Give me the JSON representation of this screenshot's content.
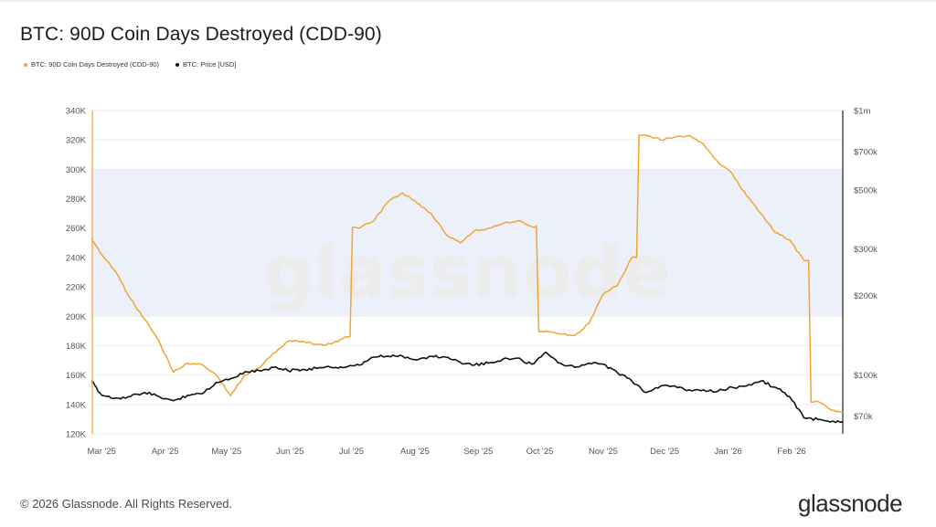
{
  "title": "BTC: 90D Coin Days Destroyed (CDD-90)",
  "legend": [
    {
      "label": "BTC: 90D Coin Days Destroyed (CDD-90)",
      "color": "#f2a431"
    },
    {
      "label": "BTC: Price [USD]",
      "color": "#111111"
    }
  ],
  "watermark": "glassnode",
  "footer": {
    "copyright": "© 2026 Glassnode. All Rights Reserved.",
    "logo": "glassnode"
  },
  "chart_data": {
    "type": "line",
    "x": [
      "2025-02-24",
      "2025-03-01",
      "2025-03-08",
      "2025-03-15",
      "2025-03-22",
      "2025-03-29",
      "2025-04-05",
      "2025-04-12",
      "2025-04-19",
      "2025-04-26",
      "2025-05-03",
      "2025-05-10",
      "2025-05-17",
      "2025-05-24",
      "2025-05-31",
      "2025-06-07",
      "2025-06-14",
      "2025-06-21",
      "2025-06-28",
      "2025-07-05",
      "2025-07-12",
      "2025-07-19",
      "2025-07-26",
      "2025-08-02",
      "2025-08-09",
      "2025-08-16",
      "2025-08-23",
      "2025-08-30",
      "2025-09-06",
      "2025-09-13",
      "2025-09-20",
      "2025-09-27",
      "2025-10-04",
      "2025-10-11",
      "2025-10-18",
      "2025-10-25",
      "2025-11-01",
      "2025-11-08",
      "2025-11-15",
      "2025-11-22",
      "2025-11-29",
      "2025-12-06",
      "2025-12-13",
      "2025-12-20",
      "2025-12-27",
      "2026-01-03",
      "2026-01-10",
      "2026-01-17",
      "2026-01-24",
      "2026-01-31",
      "2026-02-07",
      "2026-02-14",
      "2026-02-21",
      "2026-02-26"
    ],
    "series": [
      {
        "name": "BTC: 90D Coin Days Destroyed (CDD-90)",
        "axis": "left",
        "color": "#f2a431",
        "values": [
          253000,
          242000,
          230000,
          212000,
          198000,
          183000,
          162000,
          168000,
          167000,
          160000,
          146000,
          160000,
          165000,
          175000,
          183000,
          183000,
          181000,
          181000,
          186000,
          260000,
          265000,
          278000,
          284000,
          277000,
          270000,
          256000,
          250000,
          258000,
          260000,
          263000,
          265000,
          261000,
          190000,
          188000,
          187000,
          195000,
          215000,
          221000,
          240000,
          323000,
          320000,
          322000,
          323000,
          317000,
          305000,
          297000,
          282000,
          270000,
          257000,
          252000,
          238000,
          142000,
          136000,
          135000
        ]
      },
      {
        "name": "BTC: Price [USD]",
        "axis": "right",
        "color": "#111111",
        "values": [
          95000,
          84000,
          82000,
          83000,
          86000,
          83000,
          80000,
          84000,
          85000,
          94000,
          97000,
          103000,
          104000,
          107000,
          104000,
          105000,
          106000,
          107000,
          107000,
          109000,
          117000,
          118000,
          118000,
          114000,
          118000,
          117000,
          112000,
          109000,
          111000,
          115000,
          116000,
          110000,
          122000,
          111000,
          107000,
          111000,
          110000,
          102000,
          95000,
          86000,
          91000,
          91000,
          88000,
          88000,
          87000,
          90000,
          91000,
          95000,
          90000,
          83000,
          69000,
          68000,
          67000,
          67000
        ]
      }
    ],
    "y_left": {
      "ticks": [
        "120K",
        "140K",
        "160K",
        "180K",
        "200K",
        "220K",
        "240K",
        "260K",
        "280K",
        "300K",
        "320K",
        "340K"
      ],
      "range": [
        120000,
        340000
      ]
    },
    "y_right": {
      "ticks": [
        "$70k",
        "$100k",
        "$200k",
        "$300k",
        "$500k",
        "$700k",
        "$1m"
      ],
      "tick_values": [
        70000,
        100000,
        200000,
        300000,
        500000,
        700000,
        1000000
      ],
      "scale": "log",
      "range": [
        60000,
        1000000
      ]
    },
    "x_ticks": [
      {
        "label": "Mar '25",
        "date": "2025-03-01"
      },
      {
        "label": "Apr '25",
        "date": "2025-04-01"
      },
      {
        "label": "May '25",
        "date": "2025-05-01"
      },
      {
        "label": "Jun '25",
        "date": "2025-06-01"
      },
      {
        "label": "Jul '25",
        "date": "2025-07-01"
      },
      {
        "label": "Aug '25",
        "date": "2025-08-01"
      },
      {
        "label": "Sep '25",
        "date": "2025-09-01"
      },
      {
        "label": "Oct '25",
        "date": "2025-10-01"
      },
      {
        "label": "Nov '25",
        "date": "2025-11-01"
      },
      {
        "label": "Dec '25",
        "date": "2025-12-01"
      },
      {
        "label": "Jan '26",
        "date": "2026-01-01"
      },
      {
        "label": "Feb '26",
        "date": "2026-02-01"
      }
    ],
    "band": {
      "from": 200000,
      "to": 300000,
      "color": "#e6ebf9"
    },
    "grid": "horizontal"
  }
}
